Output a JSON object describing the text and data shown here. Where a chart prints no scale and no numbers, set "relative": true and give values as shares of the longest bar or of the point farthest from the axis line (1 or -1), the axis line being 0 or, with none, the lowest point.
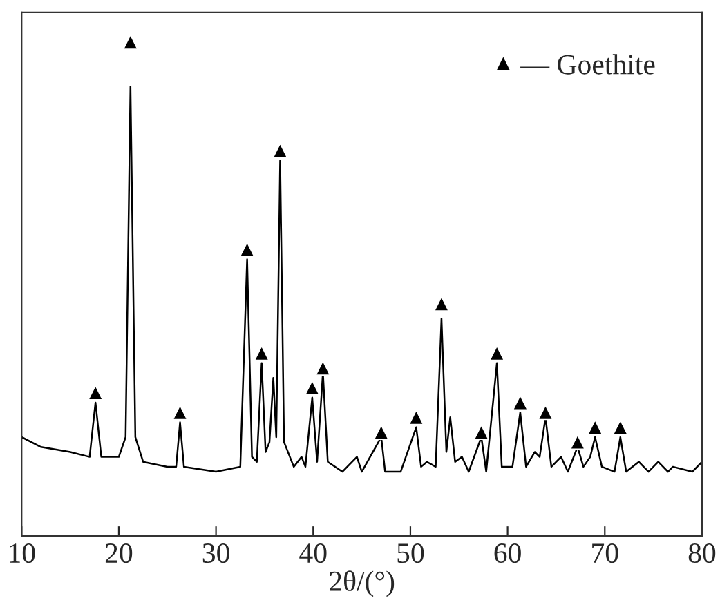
{
  "chart_data": {
    "type": "line",
    "relative": true,
    "xlabel": "2θ/(°)",
    "xlim": [
      10,
      80
    ],
    "xticks": [
      10,
      20,
      30,
      40,
      50,
      60,
      70,
      80
    ],
    "grid": false,
    "legend": "top right",
    "series": [
      {
        "color": "#000000",
        "x": [
          10,
          12,
          15,
          17,
          17.6,
          18.2,
          20,
          20.7,
          21.2,
          21.7,
          22.5,
          25,
          25.9,
          26.3,
          26.7,
          30,
          32.5,
          33.2,
          33.7,
          34.2,
          34.7,
          35.1,
          35.5,
          35.9,
          36.2,
          36.6,
          37.0,
          38,
          38.8,
          39.2,
          39.9,
          40.4,
          41.0,
          41.5,
          43,
          44.5,
          45,
          47.0,
          47.4,
          49,
          50.6,
          51.1,
          51.7,
          52.6,
          53.2,
          53.7,
          54.1,
          54.6,
          55.3,
          56,
          57.3,
          57.8,
          58.9,
          59.4,
          60.5,
          61.3,
          61.9,
          62.8,
          63.3,
          63.9,
          64.5,
          65.5,
          66.2,
          67.2,
          67.8,
          68.5,
          69.0,
          69.7,
          71,
          71.6,
          72.2,
          73.5,
          74.5,
          75.5,
          76.5,
          77,
          79,
          80
        ],
        "values": [
          0.2,
          0.18,
          0.17,
          0.16,
          0.27,
          0.16,
          0.16,
          0.2,
          0.91,
          0.2,
          0.15,
          0.14,
          0.14,
          0.23,
          0.14,
          0.13,
          0.14,
          0.56,
          0.16,
          0.15,
          0.35,
          0.17,
          0.19,
          0.32,
          0.2,
          0.76,
          0.19,
          0.14,
          0.16,
          0.14,
          0.28,
          0.15,
          0.33,
          0.15,
          0.13,
          0.16,
          0.13,
          0.2,
          0.13,
          0.13,
          0.22,
          0.14,
          0.15,
          0.14,
          0.44,
          0.17,
          0.24,
          0.15,
          0.16,
          0.13,
          0.2,
          0.13,
          0.35,
          0.14,
          0.14,
          0.25,
          0.14,
          0.17,
          0.16,
          0.24,
          0.14,
          0.16,
          0.13,
          0.18,
          0.14,
          0.16,
          0.2,
          0.14,
          0.13,
          0.2,
          0.13,
          0.15,
          0.13,
          0.15,
          0.13,
          0.14,
          0.13,
          0.15
        ]
      },
      {
        "type": "scatter",
        "name": "— Goethite",
        "color": "#000000",
        "marker": "triangle",
        "x": [
          17.6,
          21.2,
          26.3,
          33.2,
          34.7,
          36.6,
          39.9,
          41.0,
          47.0,
          50.6,
          53.2,
          57.3,
          58.9,
          61.3,
          63.9,
          67.2,
          69.0,
          71.6
        ],
        "values": [
          0.29,
          1.0,
          0.25,
          0.58,
          0.37,
          0.78,
          0.3,
          0.34,
          0.21,
          0.24,
          0.47,
          0.21,
          0.37,
          0.27,
          0.25,
          0.19,
          0.22,
          0.22
        ]
      }
    ]
  }
}
